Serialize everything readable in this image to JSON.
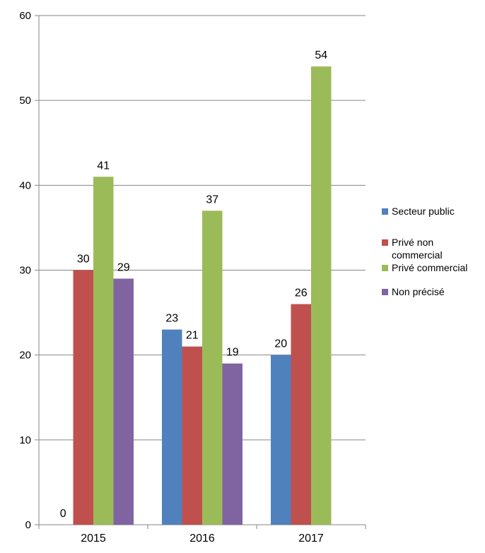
{
  "chart_data": {
    "type": "bar",
    "title": "",
    "xlabel": "",
    "ylabel": "",
    "ylim": [
      0,
      60
    ],
    "y_ticks": [
      "0",
      "10",
      "20",
      "30",
      "40",
      "50",
      "60"
    ],
    "categories": [
      "2015",
      "2016",
      "2017"
    ],
    "grid": true,
    "legend_position": "right",
    "series": [
      {
        "name": "Secteur public",
        "color": "#4f81bd",
        "values": [
          0,
          23,
          20
        ],
        "labels": [
          "0",
          "23",
          "20"
        ]
      },
      {
        "name": "Privé non commercial",
        "color": "#c0504d",
        "values": [
          30,
          21,
          26
        ],
        "labels": [
          "30",
          "21",
          "26"
        ]
      },
      {
        "name": "Privé commercial",
        "color": "#9bbb59",
        "values": [
          41,
          37,
          54
        ],
        "labels": [
          "41",
          "37",
          "54"
        ]
      },
      {
        "name": "Non précisé",
        "color": "#8064a2",
        "values": [
          29,
          19,
          null
        ],
        "labels": [
          "29",
          "19",
          ""
        ]
      }
    ]
  }
}
